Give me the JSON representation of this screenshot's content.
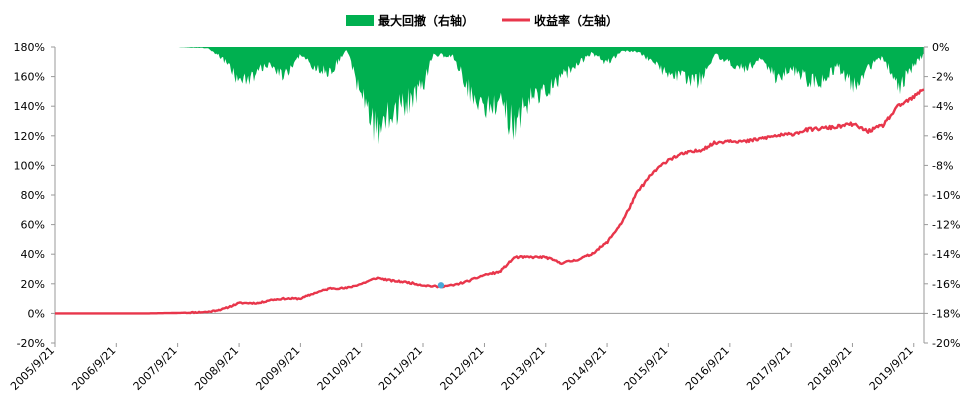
{
  "chart_data": {
    "type": "line",
    "title": "",
    "legend": {
      "placement": "top-center",
      "entries": [
        {
          "label": "最大回撤（右轴）",
          "kind": "area",
          "color": "#00b050"
        },
        {
          "label": "收益率（左轴）",
          "kind": "line",
          "color": "#e8364b"
        }
      ]
    },
    "x_ticks": [
      "2005/9/21",
      "2006/9/21",
      "2007/9/21",
      "2008/9/21",
      "2009/9/21",
      "2010/9/21",
      "2011/9/21",
      "2012/9/21",
      "2013/9/21",
      "2014/9/21",
      "2015/9/21",
      "2016/9/21",
      "2017/9/21",
      "2018/9/21",
      "2019/9/21"
    ],
    "x_range": [
      "2005/9/21",
      "2019/11/21"
    ],
    "y_left": {
      "ylim": [
        -20,
        180
      ],
      "unit": "%",
      "ticks": [
        "180%",
        "160%",
        "140%",
        "120%",
        "100%",
        "80%",
        "60%",
        "40%",
        "20%",
        "0%",
        "-20%"
      ]
    },
    "y_right": {
      "ylim": [
        -20,
        0
      ],
      "unit": "%",
      "ticks": [
        "0%",
        "-2%",
        "-4%",
        "-6%",
        "-8%",
        "-10%",
        "-12%",
        "-14%",
        "-16%",
        "-18%",
        "-20%"
      ]
    },
    "grid": false,
    "series": [
      {
        "name": "收益率（左轴）",
        "axis": "left",
        "color": "#e8364b",
        "x": [
          "2005/9/21",
          "2006/3/21",
          "2006/9/21",
          "2007/3/21",
          "2007/9/21",
          "2008/3/21",
          "2008/6/21",
          "2008/9/21",
          "2008/11/21",
          "2009/1/21",
          "2009/3/21",
          "2009/6/21",
          "2009/9/21",
          "2009/12/21",
          "2010/3/21",
          "2010/6/21",
          "2010/9/21",
          "2010/12/21",
          "2011/3/21",
          "2011/6/21",
          "2011/9/21",
          "2011/12/21",
          "2012/3/21",
          "2012/6/21",
          "2012/9/21",
          "2012/12/21",
          "2013/3/21",
          "2013/6/21",
          "2013/9/21",
          "2013/12/21",
          "2014/3/21",
          "2014/6/21",
          "2014/9/21",
          "2014/12/21",
          "2015/3/21",
          "2015/6/21",
          "2015/9/21",
          "2015/12/21",
          "2016/3/21",
          "2016/6/21",
          "2016/9/21",
          "2016/12/21",
          "2017/3/21",
          "2017/6/21",
          "2017/9/21",
          "2017/12/21",
          "2018/3/21",
          "2018/6/21",
          "2018/9/21",
          "2018/12/21",
          "2019/3/21",
          "2019/6/21",
          "2019/9/21",
          "2019/11/21"
        ],
        "values": [
          0,
          0,
          0,
          0,
          0.3,
          1,
          3,
          7,
          7,
          7,
          9,
          10,
          10,
          14,
          17,
          17,
          20,
          24,
          22,
          21,
          19,
          18,
          19,
          22,
          26,
          28,
          38,
          38,
          38,
          34,
          36,
          40,
          48,
          62,
          82,
          95,
          104,
          108,
          110,
          115,
          117,
          116,
          118,
          120,
          121,
          124,
          125,
          126,
          128,
          123,
          127,
          140,
          146,
          152
        ]
      },
      {
        "name": "最大回撤（右轴）",
        "axis": "right",
        "color": "#00b050",
        "x": [
          "2005/9/21",
          "2006/9/21",
          "2007/9/21",
          "2008/3/21",
          "2008/6/21",
          "2008/9/21",
          "2008/12/21",
          "2009/3/21",
          "2009/6/21",
          "2009/9/21",
          "2009/12/21",
          "2010/3/21",
          "2010/6/21",
          "2010/9/21",
          "2010/12/21",
          "2011/3/21",
          "2011/6/21",
          "2011/9/21",
          "2011/11/21",
          "2012/3/21",
          "2012/6/21",
          "2012/9/21",
          "2012/12/21",
          "2013/3/21",
          "2013/6/21",
          "2013/9/21",
          "2013/12/21",
          "2014/3/21",
          "2014/6/21",
          "2014/9/21",
          "2014/12/21",
          "2015/3/21",
          "2015/6/21",
          "2015/9/21",
          "2015/12/21",
          "2016/3/21",
          "2016/6/21",
          "2016/9/21",
          "2016/12/21",
          "2017/3/21",
          "2017/6/21",
          "2017/9/21",
          "2017/12/21",
          "2018/3/21",
          "2018/6/21",
          "2018/9/21",
          "2018/12/21",
          "2019/3/21",
          "2019/6/21",
          "2019/9/21",
          "2019/11/21"
        ],
        "values": [
          0,
          0,
          0,
          -0.1,
          -1.0,
          -2.8,
          -2.3,
          -1.3,
          -2.4,
          -0.6,
          -1.8,
          -2.0,
          -0.2,
          -4.0,
          -6.9,
          -5.5,
          -4.5,
          -3.2,
          -0.6,
          -0.8,
          -3.5,
          -5.0,
          -4.5,
          -6.6,
          -4.2,
          -3.5,
          -2.5,
          -1.5,
          -0.5,
          -1.3,
          -0.3,
          -0.4,
          -1.2,
          -2.3,
          -2.5,
          -2.8,
          -0.6,
          -1.3,
          -1.8,
          -1.0,
          -2.5,
          -1.8,
          -2.6,
          -3.0,
          -1.5,
          -3.2,
          -1.8,
          -0.8,
          -3.3,
          -1.5,
          -0.6
        ]
      }
    ],
    "highlight_point": {
      "x": "2012/1/6",
      "value": 19,
      "color": "#4aa8d8"
    }
  }
}
